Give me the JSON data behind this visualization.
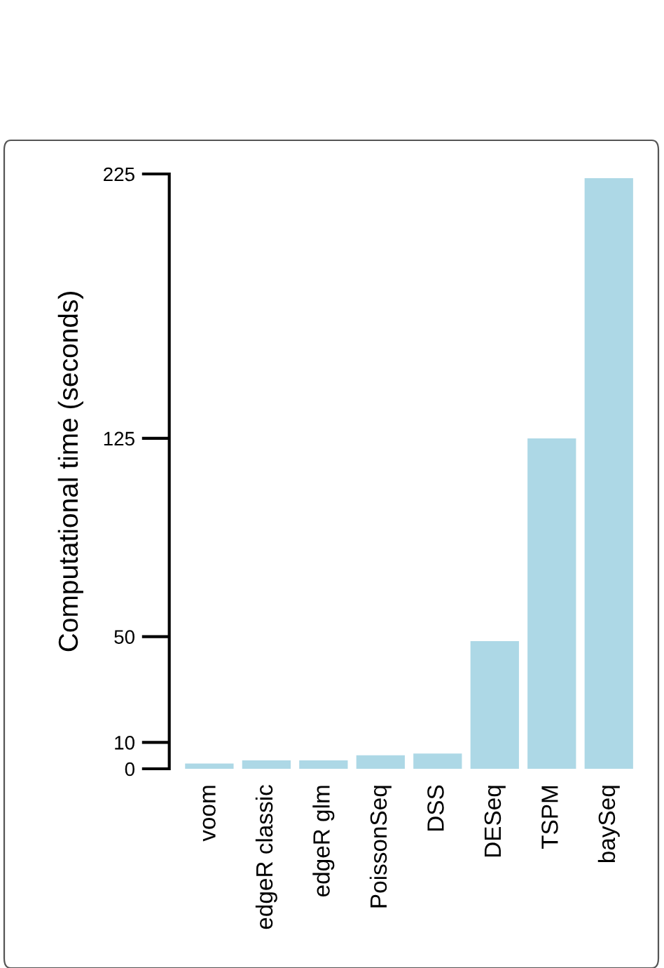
{
  "chart_data": {
    "type": "bar",
    "ylabel": "Computational time (seconds)",
    "categories": [
      "voom",
      "edgeR classic",
      "edgeR glm",
      "PoissonSeq",
      "DSS",
      "DESeq",
      "TSPM",
      "baySeq"
    ],
    "values": [
      2,
      3.2,
      3.2,
      5.1,
      5.8,
      48.3,
      125,
      223.4
    ],
    "color": "#add8e6",
    "ylim": [
      0,
      225
    ],
    "yticks": [
      0,
      10,
      50,
      125,
      225
    ],
    "grid": false
  }
}
